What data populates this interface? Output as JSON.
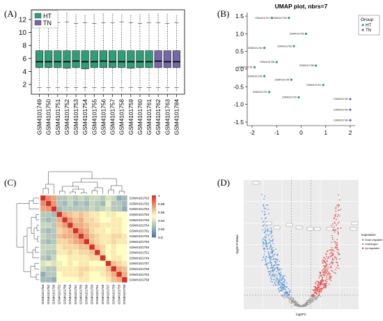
{
  "panels": {
    "a": {
      "label": "(A)"
    },
    "b": {
      "label": "(B)"
    },
    "c": {
      "label": "(C)"
    },
    "d": {
      "label": "(D)"
    }
  },
  "chart_data": [
    {
      "panel": "A",
      "type": "box",
      "title": "",
      "ylim": [
        0.5,
        13.5
      ],
      "yticks": [
        2,
        4,
        6,
        8,
        10,
        12
      ],
      "legend": {
        "placement": "top-left",
        "entries": [
          {
            "name": "HT",
            "color": "#2e9e78"
          },
          {
            "name": "TN",
            "color": "#7567a8"
          }
        ]
      },
      "categories": [
        "GSM4101749",
        "GSM4101750",
        "GSM4101751",
        "GSM4101752",
        "GSM4101753",
        "GSM4101754",
        "GSM4101755",
        "GSM4101756",
        "GSM4101757",
        "GSM4101758",
        "GSM4101759",
        "GSM4101760",
        "GSM4101761",
        "GSM4101762",
        "GSM4101763",
        "GSM4101784"
      ],
      "groups": [
        "HT",
        "HT",
        "HT",
        "HT",
        "HT",
        "HT",
        "HT",
        "HT",
        "HT",
        "HT",
        "HT",
        "HT",
        "HT",
        "TN",
        "TN",
        "TN"
      ],
      "q1": [
        4.6,
        4.6,
        4.6,
        4.5,
        4.6,
        4.4,
        4.6,
        4.6,
        4.6,
        4.6,
        4.5,
        4.6,
        4.6,
        4.6,
        4.6,
        4.6
      ],
      "median": [
        5.5,
        5.5,
        5.5,
        5.5,
        5.6,
        5.5,
        5.5,
        5.6,
        5.5,
        5.5,
        5.5,
        5.5,
        5.5,
        5.6,
        5.5,
        5.5
      ],
      "q3": [
        7.2,
        7.2,
        7.2,
        7.2,
        7.2,
        7.2,
        7.2,
        7.2,
        7.2,
        7.2,
        7.2,
        7.2,
        7.2,
        7.2,
        7.2,
        7.2
      ],
      "whisker_low": [
        1.5,
        1.5,
        1.5,
        1.5,
        1.5,
        1.5,
        1.5,
        1.5,
        1.5,
        1.5,
        1.5,
        1.5,
        1.5,
        1.5,
        1.5,
        1.5
      ],
      "whisker_high": [
        11.5,
        11.4,
        11.5,
        11.6,
        11.4,
        11.5,
        11.4,
        11.5,
        11.5,
        11.6,
        11.5,
        11.4,
        11.5,
        11.5,
        11.4,
        11.5
      ],
      "max": [
        12.9,
        12.8,
        12.9,
        13.0,
        12.9,
        12.8,
        12.9,
        13.0,
        12.9,
        12.9,
        12.8,
        12.9,
        13.0,
        12.9,
        12.9,
        12.8
      ]
    },
    {
      "panel": "B",
      "type": "scatter",
      "title": "UMAP plot, nbrs=7",
      "xlim": [
        -2.2,
        2.2
      ],
      "ylim": [
        -1.6,
        1.6
      ],
      "xticks": [
        -2,
        -1,
        0,
        1,
        2
      ],
      "yticks": [
        -1.5,
        -1.0,
        -0.5,
        0.0,
        0.5,
        1.0,
        1.5
      ],
      "legend": {
        "title": "Group",
        "placement": "right",
        "entries": [
          {
            "name": "HT",
            "color": "#2e9e78"
          },
          {
            "name": "TN",
            "color": "#7567a8"
          }
        ]
      },
      "points": [
        {
          "label": "GSM4101757",
          "x": -1.2,
          "y": 1.45,
          "group": "HT"
        },
        {
          "label": "GSM4101753",
          "x": -0.5,
          "y": 1.45,
          "group": "HT"
        },
        {
          "label": "GSM4101759",
          "x": 0.2,
          "y": 1.0,
          "group": "HT"
        },
        {
          "label": "GSM4101760",
          "x": -1.5,
          "y": 0.6,
          "group": "HT"
        },
        {
          "label": "GSM4101756",
          "x": -0.3,
          "y": 0.65,
          "group": "HT"
        },
        {
          "label": "GSM4101755",
          "x": -1.0,
          "y": 0.2,
          "group": "HT"
        },
        {
          "label": "GSM4101758",
          "x": 0.6,
          "y": 0.1,
          "group": "HT"
        },
        {
          "label": "GSM4101751",
          "x": -1.9,
          "y": 0.05,
          "group": "HT"
        },
        {
          "label": "GSM4101750",
          "x": -1.5,
          "y": -0.2,
          "group": "HT"
        },
        {
          "label": "GSM4101754",
          "x": -0.4,
          "y": -0.3,
          "group": "HT"
        },
        {
          "label": "GSM4101761",
          "x": 0.9,
          "y": -0.45,
          "group": "HT"
        },
        {
          "label": "GSM4101752",
          "x": -1.3,
          "y": -0.65,
          "group": "HT"
        },
        {
          "label": "GSM4101749",
          "x": -0.1,
          "y": -0.8,
          "group": "HT"
        },
        {
          "label": "GSM4101762",
          "x": 2.0,
          "y": -0.85,
          "group": "TN"
        },
        {
          "label": "GSM4101763",
          "x": 2.0,
          "y": -1.15,
          "group": "TN"
        },
        {
          "label": "GSM4101784",
          "x": 2.0,
          "y": -1.45,
          "group": "TN"
        }
      ]
    },
    {
      "panel": "C",
      "type": "heatmap",
      "title": "",
      "rows": [
        "GSM4101763",
        "GSM4101762",
        "GSM4101784",
        "GSM4101752",
        "GSM4101756",
        "GSM4101754",
        "GSM4101761",
        "GSM4101755",
        "GSM4101760",
        "GSM4101750",
        "GSM4101751",
        "GSM4101749",
        "GSM4101757",
        "GSM4101759",
        "GSM4101753",
        "GSM4101758"
      ],
      "columns": [
        "GSM4101763",
        "GSM4101762",
        "GSM4101784",
        "GSM4101752",
        "GSM4101756",
        "GSM4101754",
        "GSM4101761",
        "GSM4101755",
        "GSM4101760",
        "GSM4101750",
        "GSM4101751",
        "GSM4101749",
        "GSM4101757",
        "GSM4101759",
        "GSM4101753",
        "GSM4101758"
      ],
      "scale": {
        "min": 0.9,
        "max": 1.0,
        "ticks": [
          "1",
          "0.98",
          "0.96",
          "0.94",
          "0.92",
          "0.9"
        ],
        "low_color": "#4575b4",
        "mid_color": "#ffffbf",
        "high_color": "#d73027"
      },
      "values": [
        [
          1.0,
          0.978,
          0.972,
          0.93,
          0.93,
          0.935,
          0.93,
          0.935,
          0.93,
          0.935,
          0.935,
          0.93,
          0.94,
          0.935,
          0.92,
          0.925
        ],
        [
          0.978,
          1.0,
          0.975,
          0.93,
          0.925,
          0.935,
          0.925,
          0.93,
          0.925,
          0.935,
          0.93,
          0.925,
          0.945,
          0.93,
          0.93,
          0.925
        ],
        [
          0.972,
          0.975,
          1.0,
          0.925,
          0.93,
          0.93,
          0.93,
          0.93,
          0.93,
          0.935,
          0.93,
          0.935,
          0.94,
          0.93,
          0.93,
          0.92
        ],
        [
          0.93,
          0.93,
          0.925,
          1.0,
          0.97,
          0.965,
          0.96,
          0.965,
          0.96,
          0.955,
          0.955,
          0.95,
          0.945,
          0.955,
          0.95,
          0.95
        ],
        [
          0.93,
          0.925,
          0.93,
          0.97,
          1.0,
          0.975,
          0.965,
          0.97,
          0.96,
          0.96,
          0.955,
          0.95,
          0.95,
          0.955,
          0.955,
          0.95
        ],
        [
          0.935,
          0.935,
          0.93,
          0.965,
          0.975,
          1.0,
          0.97,
          0.97,
          0.965,
          0.96,
          0.96,
          0.955,
          0.955,
          0.955,
          0.955,
          0.95
        ],
        [
          0.93,
          0.925,
          0.93,
          0.96,
          0.965,
          0.97,
          1.0,
          0.975,
          0.97,
          0.96,
          0.955,
          0.955,
          0.95,
          0.955,
          0.955,
          0.95
        ],
        [
          0.935,
          0.93,
          0.93,
          0.965,
          0.97,
          0.97,
          0.975,
          1.0,
          0.975,
          0.965,
          0.96,
          0.955,
          0.955,
          0.96,
          0.96,
          0.955
        ],
        [
          0.93,
          0.925,
          0.93,
          0.96,
          0.96,
          0.965,
          0.97,
          0.975,
          1.0,
          0.965,
          0.96,
          0.955,
          0.955,
          0.96,
          0.955,
          0.955
        ],
        [
          0.935,
          0.935,
          0.935,
          0.955,
          0.96,
          0.96,
          0.96,
          0.965,
          0.965,
          1.0,
          0.965,
          0.96,
          0.95,
          0.955,
          0.95,
          0.95
        ],
        [
          0.935,
          0.93,
          0.93,
          0.955,
          0.955,
          0.96,
          0.955,
          0.96,
          0.96,
          0.965,
          1.0,
          0.96,
          0.95,
          0.955,
          0.95,
          0.95
        ],
        [
          0.93,
          0.925,
          0.935,
          0.95,
          0.95,
          0.955,
          0.955,
          0.955,
          0.955,
          0.96,
          0.96,
          1.0,
          0.95,
          0.955,
          0.955,
          0.95
        ],
        [
          0.94,
          0.945,
          0.94,
          0.945,
          0.95,
          0.955,
          0.95,
          0.955,
          0.955,
          0.95,
          0.95,
          0.95,
          1.0,
          0.965,
          0.96,
          0.955
        ],
        [
          0.935,
          0.93,
          0.93,
          0.955,
          0.955,
          0.955,
          0.955,
          0.96,
          0.96,
          0.955,
          0.955,
          0.955,
          0.965,
          1.0,
          0.97,
          0.965
        ],
        [
          0.92,
          0.93,
          0.93,
          0.95,
          0.955,
          0.955,
          0.955,
          0.96,
          0.955,
          0.95,
          0.95,
          0.955,
          0.96,
          0.97,
          1.0,
          0.97
        ],
        [
          0.925,
          0.925,
          0.92,
          0.95,
          0.95,
          0.95,
          0.95,
          0.955,
          0.955,
          0.95,
          0.95,
          0.95,
          0.955,
          0.965,
          0.97,
          1.0
        ]
      ]
    },
    {
      "panel": "D",
      "type": "scatter",
      "title": "",
      "xlabel": "log2FC",
      "ylabel": "-log10 P.Value",
      "legend": {
        "title": "Expression",
        "placement": "right",
        "entries": [
          {
            "name": "Down-regulated",
            "color": "#4a8fd6"
          },
          {
            "name": "Unchanged",
            "color": "#9a9a9a"
          },
          {
            "name": "Up-regulated",
            "color": "#e23b3b"
          }
        ]
      },
      "grid": true,
      "note": "volcano plot"
    }
  ]
}
